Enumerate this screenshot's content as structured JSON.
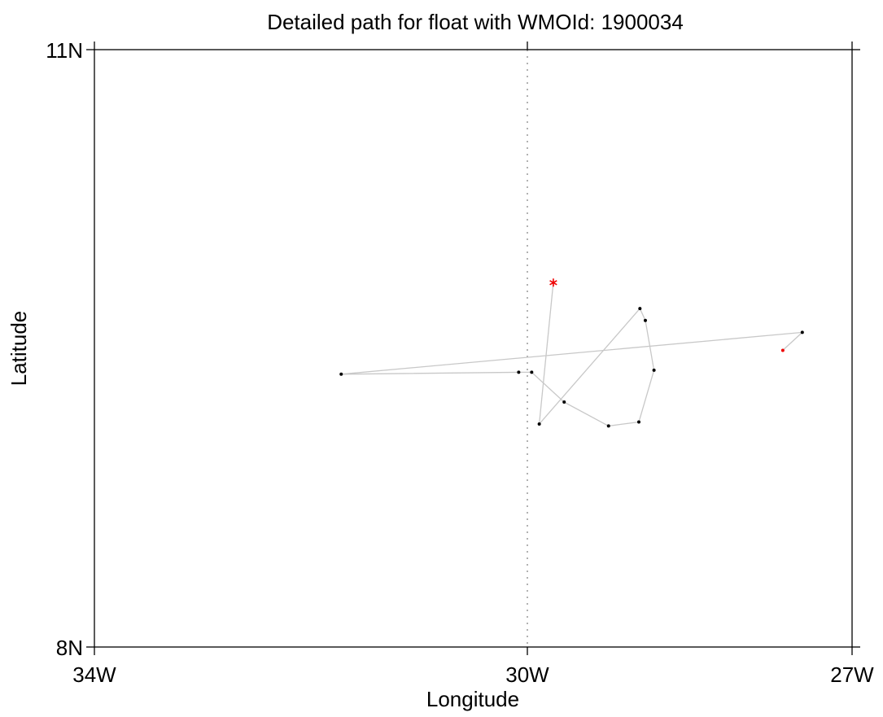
{
  "title": "Detailed path for float with WMOId: 1900034",
  "x_axis": {
    "label": "Longitude",
    "ticks": [
      {
        "value": -34,
        "label": "34W"
      },
      {
        "value": -30,
        "label": "30W"
      },
      {
        "value": -27,
        "label": "27W"
      }
    ],
    "range": [
      -34,
      -27
    ]
  },
  "y_axis": {
    "label": "Latitude",
    "ticks": [
      {
        "value": 8,
        "label": "8N"
      },
      {
        "value": 11,
        "label": "11N"
      }
    ],
    "range": [
      8,
      11
    ]
  },
  "reference_line": {
    "lon": -30,
    "style": "dotted"
  },
  "colors": {
    "path": "#c8c8c8",
    "point": "#000000",
    "highlight": "#ee0000",
    "axis": "#000000",
    "reference": "#888888"
  },
  "chart_data": {
    "type": "scatter",
    "title": "Detailed path for float with WMOId: 1900034",
    "xlabel": "Longitude",
    "ylabel": "Latitude",
    "xlim": [
      -34,
      -27
    ],
    "ylim": [
      8,
      11
    ],
    "path": [
      {
        "lon": -27.64,
        "lat": 9.49,
        "marker": "dot-red"
      },
      {
        "lon": -27.46,
        "lat": 9.58
      },
      {
        "lon": -31.72,
        "lat": 9.37
      },
      {
        "lon": -30.08,
        "lat": 9.38
      },
      {
        "lon": -29.96,
        "lat": 9.38
      },
      {
        "lon": -29.66,
        "lat": 9.23
      },
      {
        "lon": -29.25,
        "lat": 9.11
      },
      {
        "lon": -28.97,
        "lat": 9.13
      },
      {
        "lon": -28.83,
        "lat": 9.39
      },
      {
        "lon": -28.91,
        "lat": 9.64
      },
      {
        "lon": -28.96,
        "lat": 9.7
      },
      {
        "lon": -29.89,
        "lat": 9.12
      },
      {
        "lon": -29.76,
        "lat": 9.83,
        "marker": "asterisk-red"
      }
    ],
    "grid": false
  }
}
